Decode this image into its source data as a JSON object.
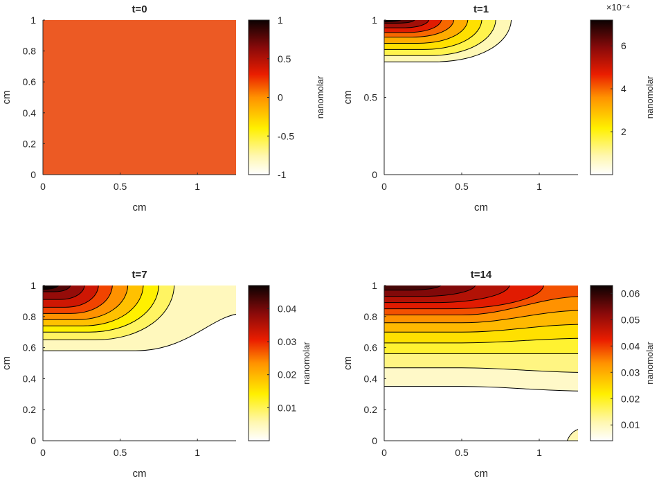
{
  "chart_data": [
    {
      "type": "contour",
      "title": "t=0",
      "xlabel": "cm",
      "ylabel": "cm",
      "xlim": [
        0,
        1.25
      ],
      "ylim": [
        0,
        1
      ],
      "x_ticks": [
        "0",
        "0.5",
        "1"
      ],
      "y_ticks": [
        "0",
        "0.2",
        "0.4",
        "0.6",
        "0.8",
        "1"
      ],
      "colorbar": {
        "label": "nanomolar",
        "range": [
          -1,
          1
        ],
        "ticks": [
          "-1",
          "-0.5",
          "0",
          "0.5",
          "1"
        ],
        "exponent": ""
      },
      "field": "uniform",
      "uniform_value": 0,
      "contour_levels": [],
      "fill_color": "#EC5A24"
    },
    {
      "type": "contour",
      "title": "t=1",
      "xlabel": "cm",
      "ylabel": "cm",
      "xlim": [
        0,
        1.25
      ],
      "ylim": [
        0,
        1
      ],
      "x_ticks": [
        "0",
        "0.5",
        "1"
      ],
      "y_ticks": [
        "0",
        "0.5",
        "1"
      ],
      "colorbar": {
        "label": "nanomolar",
        "range": [
          0,
          7.2
        ],
        "ticks": [
          "2",
          "4",
          "6"
        ],
        "exponent": "×10⁻⁴"
      },
      "field": "peak-top-left",
      "peak_value": 7.2,
      "contour_levels": [
        0.8,
        1.6,
        2.4,
        3.2,
        4.0,
        4.8,
        5.6,
        6.4
      ],
      "contour_extent_x": [
        0.82,
        0.72,
        0.63,
        0.54,
        0.45,
        0.37,
        0.29,
        0.2
      ],
      "contour_extent_y": [
        0.73,
        0.77,
        0.81,
        0.85,
        0.89,
        0.92,
        0.95,
        0.98
      ]
    },
    {
      "type": "contour",
      "title": "t=7",
      "xlabel": "cm",
      "ylabel": "cm",
      "xlim": [
        0,
        1.25
      ],
      "ylim": [
        0,
        1
      ],
      "x_ticks": [
        "0",
        "0.5",
        "1"
      ],
      "y_ticks": [
        "0",
        "0.2",
        "0.4",
        "0.6",
        "0.8",
        "1"
      ],
      "colorbar": {
        "label": "nanomolar",
        "range": [
          0,
          0.047
        ],
        "ticks": [
          "0.01",
          "0.02",
          "0.03",
          "0.04"
        ],
        "exponent": ""
      },
      "field": "peak-top-left",
      "peak_value": 0.047,
      "contour_levels": [
        0.005,
        0.01,
        0.015,
        0.02,
        0.025,
        0.03,
        0.035,
        0.04,
        0.045
      ],
      "contour_extent_x": [
        1.1,
        0.85,
        0.75,
        0.65,
        0.55,
        0.45,
        0.36,
        0.27,
        0.18
      ],
      "contour_extent_y": [
        0.58,
        0.65,
        0.7,
        0.74,
        0.78,
        0.82,
        0.86,
        0.91,
        0.96
      ],
      "outer_band": {
        "y_left": 0.58,
        "y_right": 0.82
      }
    },
    {
      "type": "contour",
      "title": "t=14",
      "xlabel": "cm",
      "ylabel": "cm",
      "xlim": [
        0,
        1.25
      ],
      "ylim": [
        0,
        1
      ],
      "x_ticks": [
        "0",
        "0.5",
        "1"
      ],
      "y_ticks": [
        "0",
        "0.2",
        "0.4",
        "0.6",
        "0.8",
        "1"
      ],
      "colorbar": {
        "label": "nanomolar",
        "range": [
          0.004,
          0.063
        ],
        "ticks": [
          "0.01",
          "0.02",
          "0.03",
          "0.04",
          "0.05",
          "0.06"
        ],
        "exponent": ""
      },
      "field": "peak-top-left",
      "peak_value": 0.063,
      "contour_levels": [
        0.01,
        0.015,
        0.02,
        0.025,
        0.03,
        0.035,
        0.04,
        0.045,
        0.05,
        0.055,
        0.06
      ],
      "band_left_y": [
        0.35,
        0.47,
        0.56,
        0.63,
        0.7,
        0.76,
        0.81,
        0.85,
        0.89,
        0.93,
        0.97
      ],
      "band_right_y": [
        0.32,
        0.44,
        0.56,
        0.66,
        0.75,
        0.84,
        0.93
      ],
      "corner_blob": {
        "x": 1.18,
        "y": 0.08
      }
    }
  ]
}
